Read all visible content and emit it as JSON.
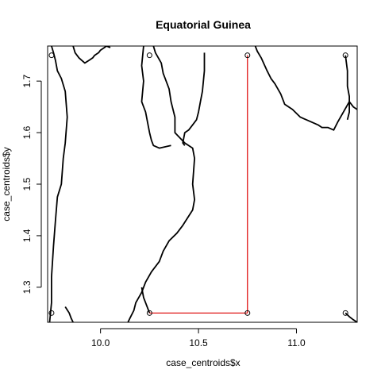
{
  "chart_data": {
    "type": "scatter",
    "title": "Equatorial Guinea",
    "xlabel": "case_centroids$x",
    "ylabel": "case_centroids$y",
    "xlim": [
      9.73,
      11.31
    ],
    "ylim": [
      1.232,
      1.768
    ],
    "x_ticks": [
      10.0,
      10.5,
      11.0
    ],
    "x_tick_labels": [
      "10.0",
      "10.5",
      "11.0"
    ],
    "y_ticks": [
      1.3,
      1.4,
      1.5,
      1.6,
      1.7
    ],
    "y_tick_labels": [
      "1.3",
      "1.4",
      "1.5",
      "1.6",
      "1.7"
    ],
    "grid": false,
    "points": {
      "marker": "open-circle",
      "x": [
        9.75,
        10.25,
        10.75,
        11.25,
        9.75,
        10.25,
        10.75,
        11.25
      ],
      "y": [
        1.75,
        1.75,
        1.75,
        1.75,
        1.25,
        1.25,
        1.25,
        1.25
      ]
    },
    "path": {
      "color": "#dd0000",
      "x": [
        10.25,
        10.75,
        10.75
      ],
      "y": [
        1.25,
        1.25,
        1.75
      ]
    },
    "boundaries": {
      "color": "#000000",
      "lines": [
        {
          "x": [
            9.75,
            9.76,
            9.77,
            9.78,
            9.8,
            9.82,
            9.83,
            9.82,
            9.81,
            9.8,
            9.78,
            9.77,
            9.76,
            9.75,
            9.75,
            9.74
          ],
          "y": [
            1.768,
            1.755,
            1.74,
            1.72,
            1.705,
            1.68,
            1.63,
            1.58,
            1.55,
            1.5,
            1.475,
            1.43,
            1.38,
            1.32,
            1.27,
            1.232
          ]
        },
        {
          "x": [
            9.86,
            9.87,
            9.89,
            9.92,
            9.94,
            9.96,
            9.97,
            9.99,
            10.0,
            10.02,
            10.03,
            10.05
          ],
          "y": [
            1.768,
            1.755,
            1.745,
            1.735,
            1.74,
            1.745,
            1.75,
            1.755,
            1.76,
            1.765,
            1.768,
            1.765
          ]
        },
        {
          "x": [
            9.82,
            9.84,
            9.85,
            9.86
          ],
          "y": [
            1.262,
            1.25,
            1.24,
            1.232
          ]
        },
        {
          "x": [
            10.27,
            10.28,
            10.31,
            10.32,
            10.33,
            10.35,
            10.36,
            10.38,
            10.38,
            10.43,
            10.47,
            10.48,
            10.47,
            10.48,
            10.47,
            10.42,
            10.39,
            10.35,
            10.32,
            10.3,
            10.26,
            10.23,
            10.21,
            10.18,
            10.17,
            10.15,
            10.14
          ],
          "y": [
            1.768,
            1.755,
            1.735,
            1.715,
            1.705,
            1.685,
            1.66,
            1.63,
            1.6,
            1.58,
            1.57,
            1.55,
            1.5,
            1.47,
            1.45,
            1.42,
            1.405,
            1.39,
            1.37,
            1.35,
            1.33,
            1.31,
            1.29,
            1.27,
            1.255,
            1.24,
            1.232
          ]
        },
        {
          "x": [
            10.22,
            10.21,
            10.22,
            10.21,
            10.23,
            10.24,
            10.25,
            10.26,
            10.27,
            10.3,
            10.36
          ],
          "y": [
            1.768,
            1.73,
            1.7,
            1.66,
            1.64,
            1.62,
            1.6,
            1.585,
            1.575,
            1.57,
            1.575
          ]
        },
        {
          "x": [
            10.43,
            10.42,
            10.43,
            10.45,
            10.47,
            10.49,
            10.5,
            10.51,
            10.52,
            10.53,
            10.53
          ],
          "y": [
            1.575,
            1.58,
            1.6,
            1.605,
            1.615,
            1.625,
            1.64,
            1.66,
            1.68,
            1.72,
            1.755
          ]
        },
        {
          "x": [
            10.21,
            10.22,
            10.24,
            10.25
          ],
          "y": [
            1.3,
            1.28,
            1.26,
            1.25
          ]
        },
        {
          "x": [
            10.79,
            10.8,
            10.82,
            10.85,
            10.87,
            10.89,
            10.92,
            10.94,
            10.98,
            11.02,
            11.05,
            11.08,
            11.11,
            11.13,
            11.16,
            11.19,
            11.21,
            11.24,
            11.27,
            11.29,
            11.31
          ],
          "y": [
            1.768,
            1.758,
            1.745,
            1.72,
            1.705,
            1.695,
            1.675,
            1.655,
            1.645,
            1.63,
            1.625,
            1.62,
            1.615,
            1.61,
            1.61,
            1.605,
            1.62,
            1.64,
            1.66,
            1.65,
            1.645
          ]
        },
        {
          "x": [
            11.25,
            11.26,
            11.26,
            11.27,
            11.27,
            11.26
          ],
          "y": [
            1.75,
            1.72,
            1.69,
            1.67,
            1.64,
            1.625
          ]
        },
        {
          "x": [
            11.25,
            11.27,
            11.29,
            11.31
          ],
          "y": [
            1.25,
            1.243,
            1.237,
            1.232
          ]
        }
      ]
    }
  }
}
